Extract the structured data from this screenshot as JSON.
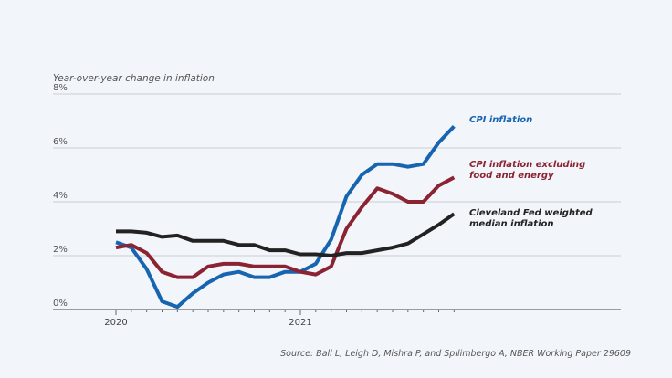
{
  "chart_data": {
    "type": "line",
    "ylabel": "Year-over-year change in inflation",
    "ylim": [
      0,
      8
    ],
    "yticks": [
      0,
      2,
      4,
      6,
      8
    ],
    "ytick_labels": [
      "0%",
      "2%",
      "4%",
      "6%",
      "8%"
    ],
    "xtick_labels": [
      "2020",
      "2021"
    ],
    "x": [
      "2020-01",
      "2020-02",
      "2020-03",
      "2020-04",
      "2020-05",
      "2020-06",
      "2020-07",
      "2020-08",
      "2020-09",
      "2020-10",
      "2020-11",
      "2020-12",
      "2021-01",
      "2021-02",
      "2021-03",
      "2021-04",
      "2021-05",
      "2021-06",
      "2021-07",
      "2021-08",
      "2021-09",
      "2021-10",
      "2021-11"
    ],
    "grid": true,
    "series": [
      {
        "name": "CPI inflation",
        "color": "#1764b0",
        "values": [
          2.5,
          2.3,
          1.5,
          0.3,
          0.1,
          0.6,
          1.0,
          1.3,
          1.4,
          1.2,
          1.2,
          1.4,
          1.4,
          1.7,
          2.6,
          4.2,
          5.0,
          5.4,
          5.4,
          5.3,
          5.4,
          6.2,
          6.8
        ]
      },
      {
        "name": "CPI inflation excluding food and energy",
        "color": "#8c2332",
        "values": [
          2.3,
          2.4,
          2.1,
          1.4,
          1.2,
          1.2,
          1.6,
          1.7,
          1.7,
          1.6,
          1.6,
          1.6,
          1.4,
          1.3,
          1.6,
          3.0,
          3.8,
          4.5,
          4.3,
          4.0,
          4.0,
          4.6,
          4.9
        ]
      },
      {
        "name": "Cleveland Fed weighted median inflation",
        "color": "#222222",
        "values": [
          2.9,
          2.9,
          2.85,
          2.7,
          2.75,
          2.55,
          2.55,
          2.55,
          2.4,
          2.4,
          2.2,
          2.2,
          2.05,
          2.05,
          2.0,
          2.1,
          2.1,
          2.2,
          2.3,
          2.45,
          2.8,
          3.15,
          3.55
        ]
      }
    ],
    "legend_lines": [
      [
        "CPI inflation"
      ],
      [
        "CPI inflation excluding",
        "food and energy"
      ],
      [
        "Cleveland Fed weighted",
        "median inflation"
      ]
    ],
    "source": "Source:  Ball L, Leigh D, Mishra P, and Spilimbergo A, NBER Working Paper 29609"
  }
}
